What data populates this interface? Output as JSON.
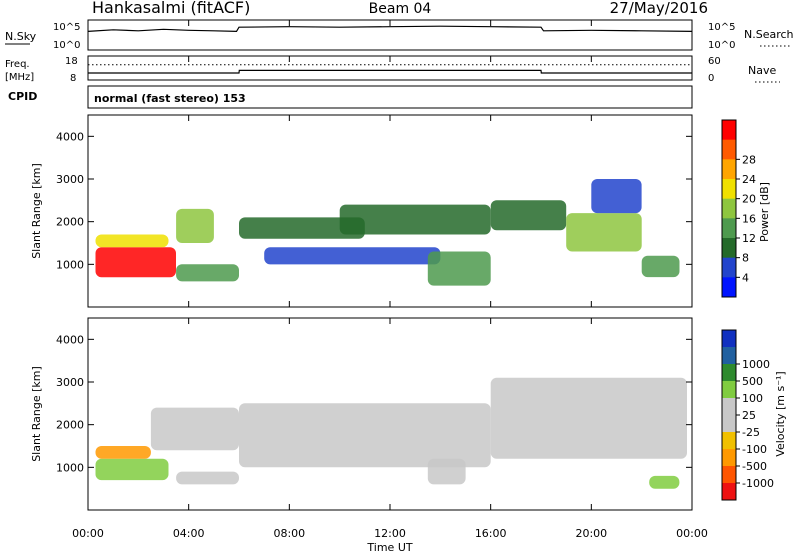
{
  "header": {
    "title": "Hankasalmi (fitACF)",
    "beam": "Beam 04",
    "date": "27/May/2016"
  },
  "colors": {
    "power_bar": [
      "#0014ff",
      "#2244cc",
      "#246a2a",
      "#4e9a4e",
      "#8ec63f",
      "#f0e000",
      "#ffa500",
      "#ff5a00",
      "#ff0000"
    ],
    "velocity_bar": [
      "#ee1111",
      "#ff5500",
      "#ff9900",
      "#f0c000",
      "#c8c8c8",
      "#c8c8c8",
      "#80cc40",
      "#2e8a2e",
      "#2060a0",
      "#1030c0"
    ]
  },
  "chart_data": [
    {
      "type": "line",
      "name": "nsky-nsearch",
      "left_label": "N.Sky",
      "right_label": "N.Search",
      "left_ticks": [
        "10^5",
        "10^0"
      ],
      "right_ticks": [
        "10^5",
        "10^0"
      ],
      "x": [
        0,
        1,
        2,
        3,
        4,
        5,
        5.9,
        6,
        8,
        10,
        12,
        14,
        16,
        18,
        18.1,
        20,
        22,
        24
      ],
      "values": [
        3.2,
        3.5,
        3.3,
        3.6,
        3.4,
        3.3,
        3.2,
        4.0,
        4.1,
        4.0,
        4.1,
        4.2,
        4.1,
        4.0,
        3.3,
        3.4,
        3.3,
        3.2
      ]
    },
    {
      "type": "line",
      "name": "freq-nave",
      "left_label": "Freq. [MHz]",
      "right_label": "Nave",
      "left_ticks": [
        "18",
        "8"
      ],
      "right_ticks": [
        "60",
        "0"
      ],
      "x": [
        0,
        6,
        6.01,
        18,
        18.01,
        24
      ],
      "freq": [
        10.5,
        10.5,
        11.8,
        11.8,
        10.5,
        10.5
      ],
      "nave": [
        40,
        40,
        40,
        40,
        40,
        40
      ]
    },
    {
      "type": "heatmap",
      "name": "power",
      "cpid_label": "CPID",
      "cpid_text": "normal (fast stereo) 153",
      "ylabel": "Slant Range [km]",
      "ylim": [
        0,
        4500
      ],
      "yticks": [
        1000,
        2000,
        3000,
        4000
      ],
      "colorbar_label": "Power [dB]",
      "colorbar_ticks": [
        "4",
        "8",
        "12",
        "16",
        "20",
        "24",
        "28"
      ],
      "regions": [
        {
          "t0": 0.3,
          "t1": 3.5,
          "r0": 700,
          "r1": 1400,
          "level": 8
        },
        {
          "t0": 0.3,
          "t1": 3.2,
          "r0": 1400,
          "r1": 1700,
          "level": 5
        },
        {
          "t0": 3.5,
          "t1": 6.0,
          "r0": 600,
          "r1": 1000,
          "level": 3
        },
        {
          "t0": 3.5,
          "t1": 5.0,
          "r0": 1500,
          "r1": 2300,
          "level": 4
        },
        {
          "t0": 6.0,
          "t1": 11.0,
          "r0": 1600,
          "r1": 2100,
          "level": 2
        },
        {
          "t0": 7.0,
          "t1": 14.0,
          "r0": 1000,
          "r1": 1400,
          "level": 1
        },
        {
          "t0": 10.0,
          "t1": 16.0,
          "r0": 1700,
          "r1": 2400,
          "level": 2
        },
        {
          "t0": 13.5,
          "t1": 16.0,
          "r0": 500,
          "r1": 1300,
          "level": 3
        },
        {
          "t0": 16.0,
          "t1": 19.0,
          "r0": 1800,
          "r1": 2500,
          "level": 2
        },
        {
          "t0": 19.0,
          "t1": 22.0,
          "r0": 1300,
          "r1": 2200,
          "level": 4
        },
        {
          "t0": 20.0,
          "t1": 22.0,
          "r0": 2200,
          "r1": 3000,
          "level": 1
        },
        {
          "t0": 22.0,
          "t1": 23.5,
          "r0": 700,
          "r1": 1200,
          "level": 3
        }
      ]
    },
    {
      "type": "heatmap",
      "name": "velocity",
      "ylabel": "Slant Range [km]",
      "ylim": [
        0,
        4500
      ],
      "yticks": [
        1000,
        2000,
        3000,
        4000
      ],
      "xlabel": "Time UT",
      "xticks": [
        "00:00",
        "04:00",
        "08:00",
        "12:00",
        "16:00",
        "20:00",
        "00:00"
      ],
      "colorbar_label": "Velocity [m s⁻¹]",
      "colorbar_ticks": [
        "-1000",
        "-500",
        "-100",
        "-25",
        "25",
        "100",
        "500",
        "1000"
      ],
      "regions": [
        {
          "t0": 0.3,
          "t1": 3.2,
          "r0": 700,
          "r1": 1200,
          "level": 6
        },
        {
          "t0": 0.3,
          "t1": 2.5,
          "r0": 1200,
          "r1": 1500,
          "level": 2
        },
        {
          "t0": 2.5,
          "t1": 6.0,
          "r0": 1400,
          "r1": 2400,
          "level": 4
        },
        {
          "t0": 3.5,
          "t1": 6.0,
          "r0": 600,
          "r1": 900,
          "level": 4
        },
        {
          "t0": 6.0,
          "t1": 16.0,
          "r0": 1000,
          "r1": 2500,
          "level": 4
        },
        {
          "t0": 13.5,
          "t1": 15.0,
          "r0": 600,
          "r1": 1200,
          "level": 4
        },
        {
          "t0": 16.0,
          "t1": 23.8,
          "r0": 1200,
          "r1": 3100,
          "level": 4
        },
        {
          "t0": 22.3,
          "t1": 23.5,
          "r0": 500,
          "r1": 800,
          "level": 6
        }
      ]
    }
  ]
}
